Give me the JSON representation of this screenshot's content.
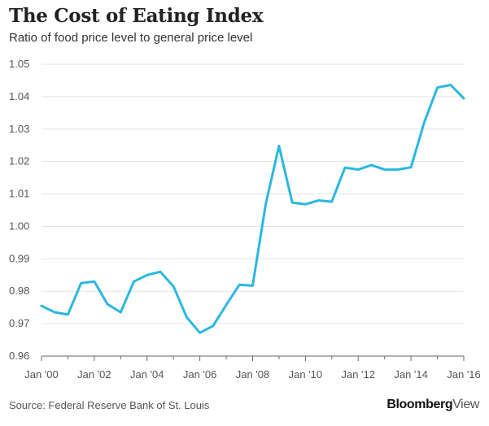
{
  "header": {
    "title": "The Cost of Eating Index",
    "subtitle": "Ratio of food price level to general price level"
  },
  "footer": {
    "source": "Source: Federal Reserve Bank of St. Louis",
    "brand_main": "Bloomberg",
    "brand_sub": "View"
  },
  "colors": {
    "line": "#2bb7e0",
    "grid": "#e3e3e3",
    "axis": "#666666"
  },
  "chart_data": {
    "type": "line",
    "title": "The Cost of Eating Index",
    "subtitle": "Ratio of food price level to general price level",
    "xlabel": "",
    "ylabel": "",
    "ylim": [
      0.96,
      1.05
    ],
    "xlim": [
      2000,
      2016
    ],
    "grid": true,
    "y_ticks": [
      "0.96",
      "0.97",
      "0.98",
      "0.99",
      "1.00",
      "1.01",
      "1.02",
      "1.03",
      "1.04",
      "1.05"
    ],
    "x_ticks": [
      "Jan '00",
      "Jan '02",
      "Jan '04",
      "Jan '06",
      "Jan '08",
      "Jan '10",
      "Jan '12",
      "Jan '14",
      "Jan '16"
    ],
    "series": [
      {
        "x": [
          2000.0,
          2000.5,
          2001.0,
          2001.5,
          2002.0,
          2002.5,
          2003.0,
          2003.5,
          2004.0,
          2004.5,
          2005.0,
          2005.5,
          2006.0,
          2006.5,
          2007.0,
          2007.5,
          2008.0,
          2008.5,
          2009.0,
          2009.5,
          2010.0,
          2010.5,
          2011.0,
          2011.5,
          2012.0,
          2012.5,
          2013.0,
          2013.5,
          2014.0,
          2014.5,
          2015.0,
          2015.5,
          2016.0
        ],
        "values": [
          0.9755,
          0.9735,
          0.9728,
          0.9825,
          0.983,
          0.976,
          0.9735,
          0.983,
          0.985,
          0.986,
          0.9815,
          0.972,
          0.9672,
          0.9693,
          0.9758,
          0.982,
          0.9817,
          1.007,
          1.0248,
          1.0073,
          1.0068,
          1.008,
          1.0076,
          1.0181,
          1.0175,
          1.0189,
          1.0175,
          1.0175,
          1.0182,
          1.032,
          1.0428,
          1.0436,
          1.0395
        ]
      }
    ]
  }
}
